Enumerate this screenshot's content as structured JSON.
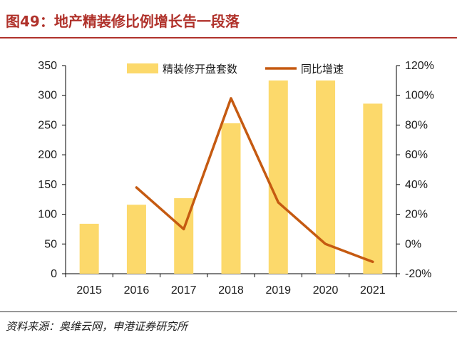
{
  "header": {
    "title": "图49：地产精装修比例增长告一段落"
  },
  "source": {
    "text": "资料来源：奥维云网，申港证券研究所"
  },
  "colors": {
    "title": "#b0322b",
    "bar": "#fcd96b",
    "line": "#c55a11"
  },
  "chart_data": {
    "type": "bar",
    "title": "",
    "categories": [
      "2015",
      "2016",
      "2017",
      "2018",
      "2019",
      "2020",
      "2021"
    ],
    "series": [
      {
        "name": "精装修开盘套数",
        "type": "bar",
        "axis": "left",
        "values": [
          84,
          116,
          127,
          253,
          325,
          325,
          286
        ]
      },
      {
        "name": "同比增速",
        "type": "line",
        "axis": "right",
        "values": [
          null,
          0.38,
          0.1,
          0.98,
          0.28,
          0.0,
          -0.12
        ]
      }
    ],
    "y_left": {
      "min": 0,
      "max": 350,
      "ticks": [
        0,
        50,
        100,
        150,
        200,
        250,
        300,
        350
      ],
      "tick_labels": [
        "0",
        "50",
        "100",
        "150",
        "200",
        "250",
        "300",
        "350"
      ]
    },
    "y_right": {
      "min": -0.2,
      "max": 1.2,
      "ticks": [
        -0.2,
        0,
        0.2,
        0.4,
        0.6,
        0.8,
        1.0,
        1.2
      ],
      "tick_labels": [
        "-20%",
        "0%",
        "20%",
        "40%",
        "60%",
        "80%",
        "100%",
        "120%"
      ]
    },
    "grid": false,
    "legend_position": "top"
  }
}
